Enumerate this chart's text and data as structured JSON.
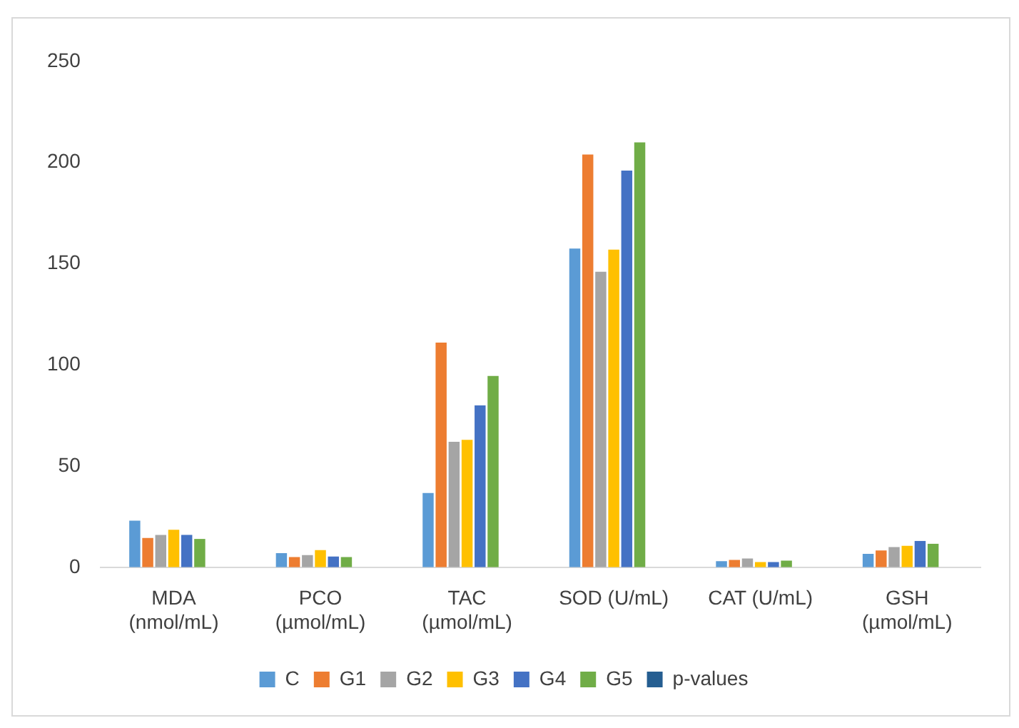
{
  "chart_data": {
    "type": "bar",
    "categories": [
      "MDA (nmol/mL)",
      "PCO (µmol/mL)",
      "TAC (µmol/mL)",
      "SOD (U/mL)",
      "CAT (U/mL)",
      "GSH (µmol/mL)"
    ],
    "series": [
      {
        "name": "C",
        "color": "#5b9bd5",
        "values": [
          23,
          7,
          36.7,
          157.5,
          3,
          6.6
        ]
      },
      {
        "name": "G1",
        "color": "#ed7d31",
        "values": [
          14.5,
          5,
          111,
          204,
          3.6,
          8.3
        ]
      },
      {
        "name": "G2",
        "color": "#a5a5a5",
        "values": [
          16,
          6,
          62,
          146,
          4.3,
          10
        ]
      },
      {
        "name": "G3",
        "color": "#ffc000",
        "values": [
          18.5,
          8.5,
          63,
          157,
          2.6,
          10.6
        ]
      },
      {
        "name": "G4",
        "color": "#4472c4",
        "values": [
          16,
          5.3,
          80,
          196,
          2.6,
          13
        ]
      },
      {
        "name": "G5",
        "color": "#70ad47",
        "values": [
          14,
          5,
          94.5,
          210,
          3.3,
          11.6
        ]
      },
      {
        "name": "p-values",
        "color": "#255e91",
        "values": [
          null,
          null,
          null,
          null,
          null,
          null
        ]
      }
    ],
    "ylim": [
      0,
      250
    ],
    "yticks": [
      0,
      50,
      100,
      150,
      200,
      250
    ],
    "grid": false,
    "legend": "bottom"
  }
}
